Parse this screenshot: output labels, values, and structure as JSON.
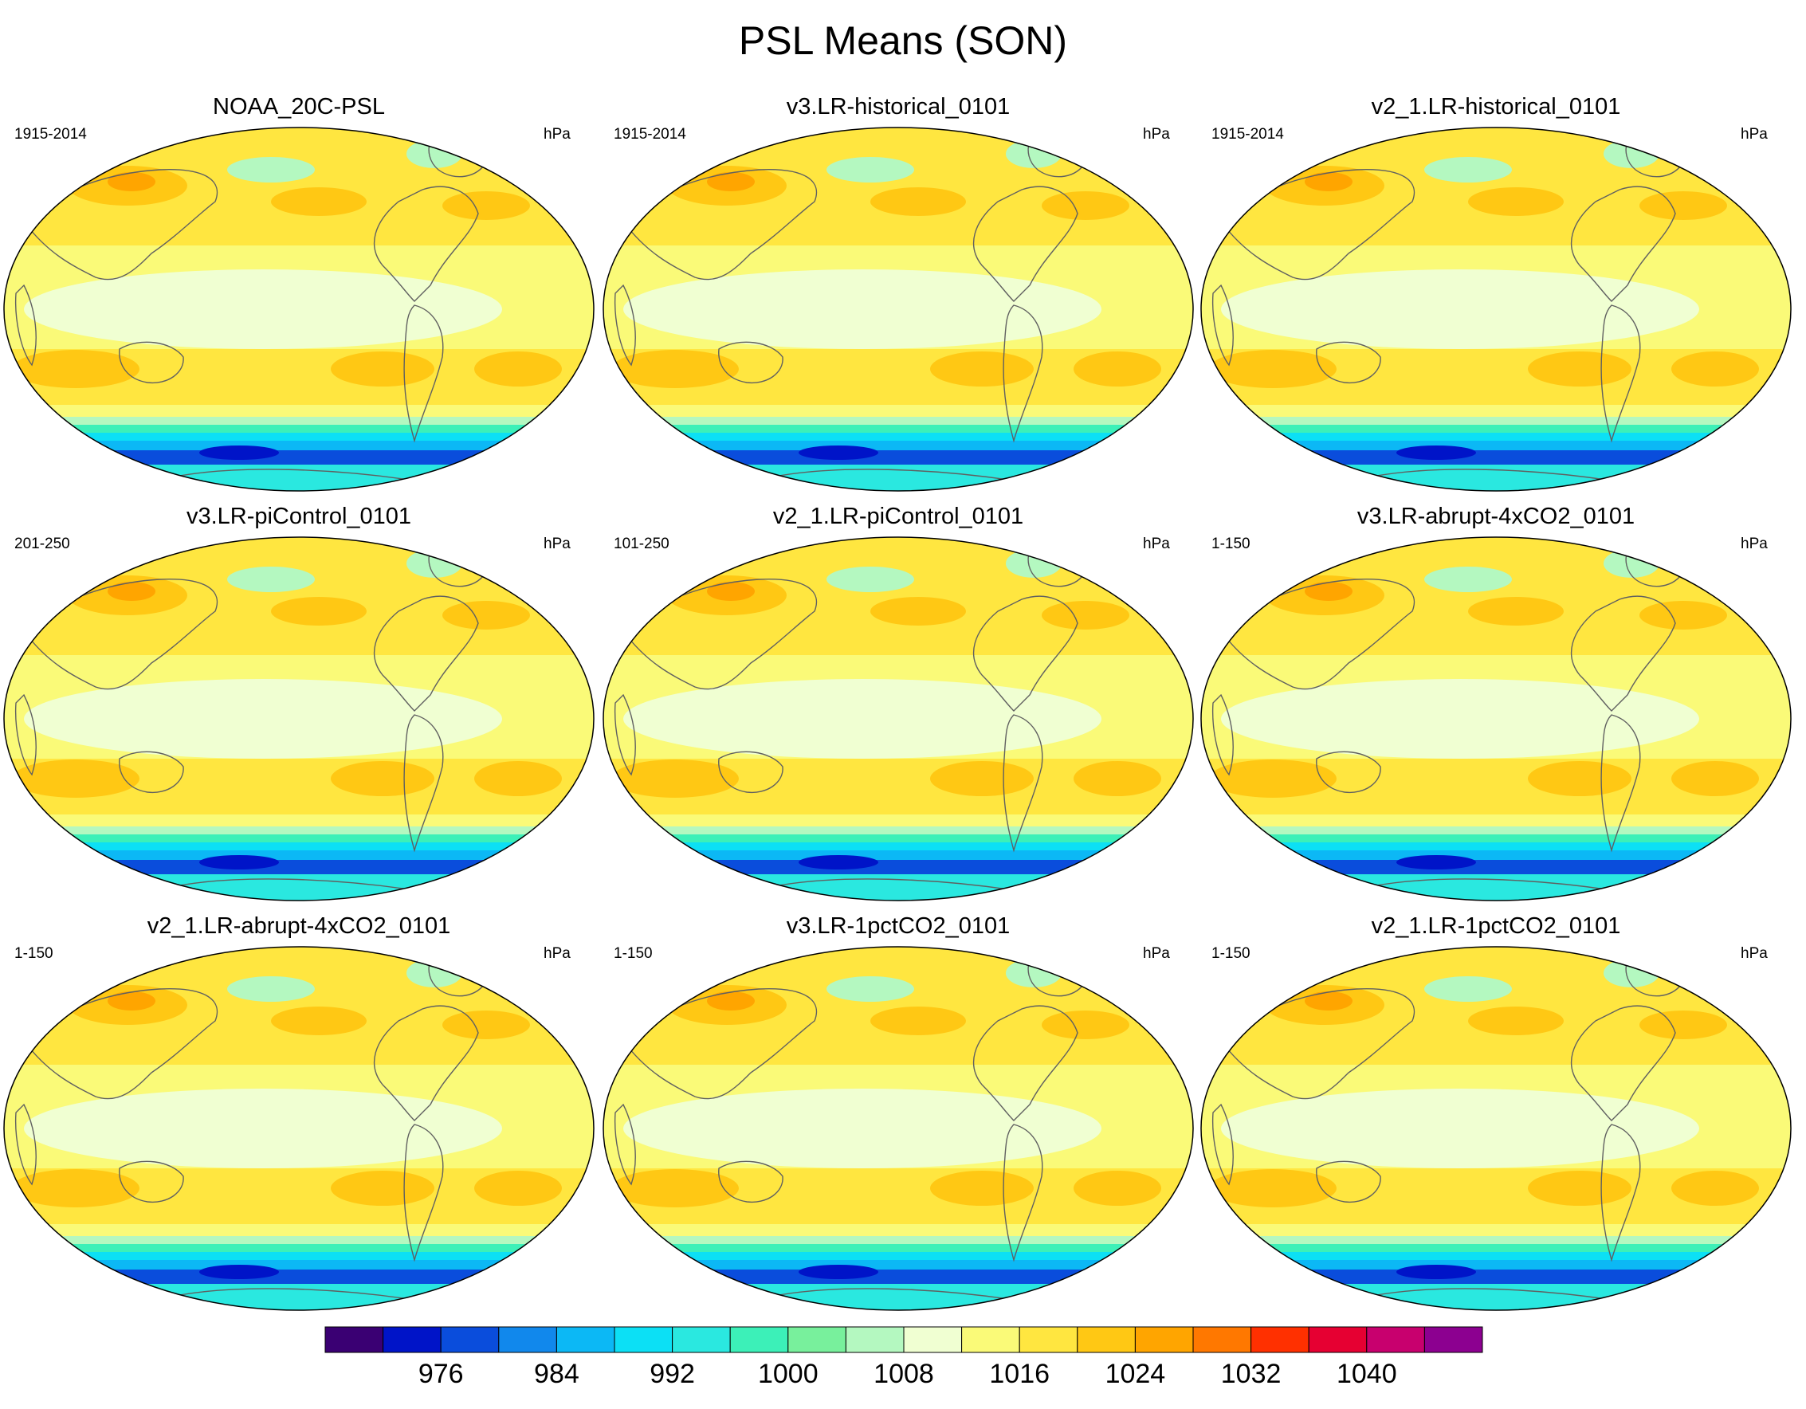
{
  "figure": {
    "title": "PSL Means (SON)"
  },
  "panels": [
    {
      "title": "NOAA_20C-PSL",
      "period": "1915-2014",
      "units": "hPa"
    },
    {
      "title": "v3.LR-historical_0101",
      "period": "1915-2014",
      "units": "hPa"
    },
    {
      "title": "v2_1.LR-historical_0101",
      "period": "1915-2014",
      "units": "hPa"
    },
    {
      "title": "v3.LR-piControl_0101",
      "period": "201-250",
      "units": "hPa"
    },
    {
      "title": "v2_1.LR-piControl_0101",
      "period": "101-250",
      "units": "hPa"
    },
    {
      "title": "v3.LR-abrupt-4xCO2_0101",
      "period": "1-150",
      "units": "hPa"
    },
    {
      "title": "v2_1.LR-abrupt-4xCO2_0101",
      "period": "1-150",
      "units": "hPa"
    },
    {
      "title": "v3.LR-1pctCO2_0101",
      "period": "1-150",
      "units": "hPa"
    },
    {
      "title": "v2_1.LR-1pctCO2_0101",
      "period": "1-150",
      "units": "hPa"
    }
  ],
  "colorbar": {
    "colors": [
      "#3a0073",
      "#0014c8",
      "#0a4ddc",
      "#1188ec",
      "#0cb8f5",
      "#0ce0f5",
      "#2ae8e0",
      "#3cf0b8",
      "#78f09c",
      "#b4f8c0",
      "#f0ffd2",
      "#fafa78",
      "#ffe640",
      "#ffc814",
      "#ffa500",
      "#ff7800",
      "#ff3000",
      "#e60032",
      "#c8006e",
      "#8c0090"
    ],
    "tick_labels": [
      "976",
      "984",
      "992",
      "1000",
      "1008",
      "1016",
      "1024",
      "1032",
      "1040"
    ]
  },
  "chart_data": {
    "type": "heatmap",
    "title": "PSL Means (SON)",
    "variable": "PSL",
    "units": "hPa",
    "contour_levels": [
      972,
      976,
      980,
      984,
      988,
      992,
      996,
      1000,
      1004,
      1008,
      1012,
      1016,
      1020,
      1024,
      1028,
      1032,
      1036,
      1040,
      1044
    ],
    "colorbar_ticks": [
      976,
      984,
      992,
      1000,
      1008,
      1016,
      1024,
      1032,
      1040
    ],
    "panels": [
      "NOAA_20C-PSL",
      "v3.LR-historical_0101",
      "v2_1.LR-historical_0101",
      "v3.LR-piControl_0101",
      "v2_1.LR-piControl_0101",
      "v3.LR-abrupt-4xCO2_0101",
      "v2_1.LR-abrupt-4xCO2_0101",
      "v3.LR-1pctCO2_0101",
      "v2_1.LR-1pctCO2_0101"
    ]
  }
}
